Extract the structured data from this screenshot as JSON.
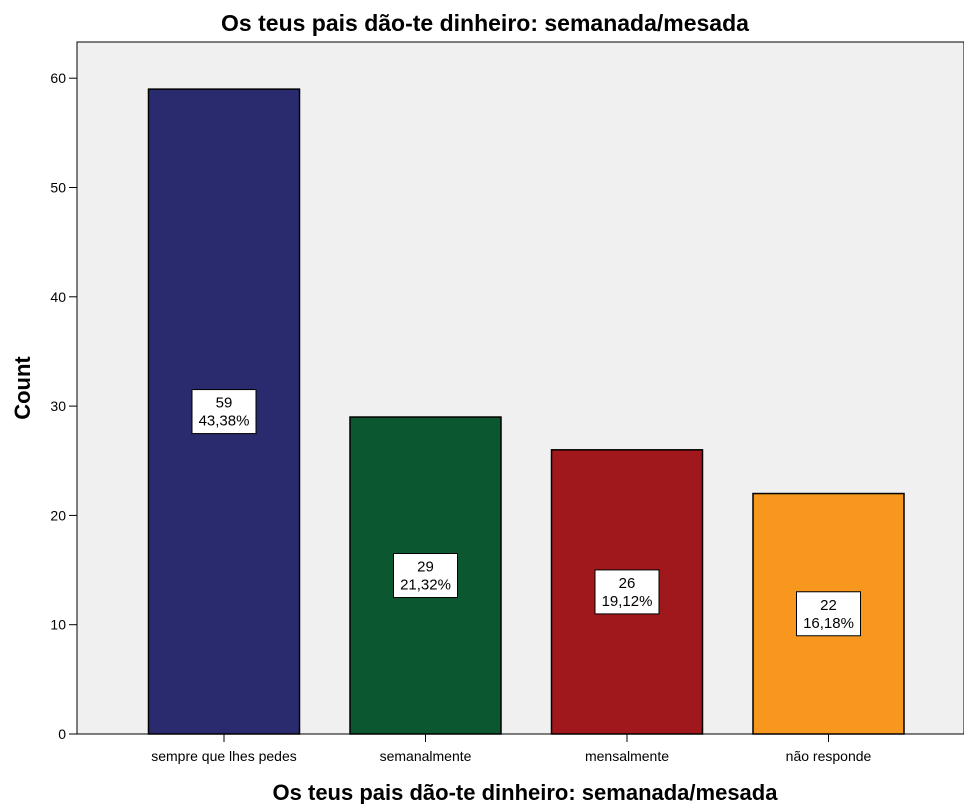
{
  "chart_data": {
    "type": "bar",
    "title": "Os teus pais dão-te dinheiro: semanada/mesada",
    "xlabel": "Os teus pais dão-te dinheiro: semanada/mesada",
    "ylabel": "Count",
    "categories": [
      "sempre que lhes pedes",
      "semanalmente",
      "mensalmente",
      "não responde"
    ],
    "values": [
      59,
      29,
      26,
      22
    ],
    "percent_labels": [
      "43,38%",
      "21,32%",
      "19,12%",
      "16,18%"
    ],
    "colors": [
      "#2a2a6e",
      "#0b5830",
      "#a0181b",
      "#f7971e"
    ],
    "ylim": [
      0,
      65
    ],
    "yticks": [
      0,
      10,
      20,
      30,
      40,
      50,
      60
    ],
    "grid": false,
    "background": "#f0f0f0"
  }
}
